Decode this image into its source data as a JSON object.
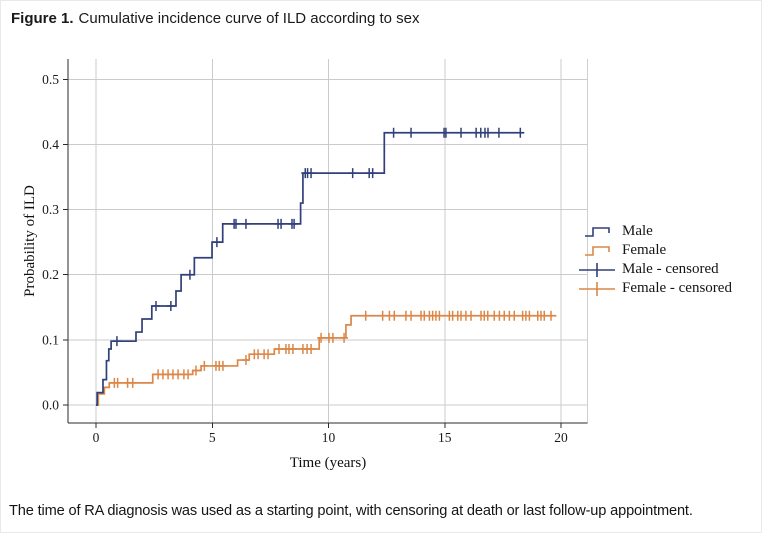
{
  "figure": {
    "label": "Figure 1.",
    "title": "Cumulative incidence curve of ILD according to sex",
    "caption": "The time of RA diagnosis was used as a starting point, with censoring at death or last follow-up appointment."
  },
  "chart_data": {
    "type": "line",
    "subtype": "cumulative-incidence-step-curve-with-censor-marks",
    "title": "",
    "xlabel": "Time (years)",
    "ylabel": "Probability of ILD",
    "xlim": [
      0,
      20
    ],
    "ylim": [
      0.0,
      0.5
    ],
    "x_ticks": [
      0,
      5,
      10,
      15,
      20
    ],
    "y_ticks": [
      "0.0",
      "0.1",
      "0.2",
      "0.3",
      "0.4",
      "0.5"
    ],
    "grid": true,
    "legend_position": "right",
    "legend": [
      {
        "label": "Male",
        "color": "#31407a",
        "glyph": "step-line"
      },
      {
        "label": "Female",
        "color": "#dc8747",
        "glyph": "step-line"
      },
      {
        "label": "Male - censored",
        "color": "#31407a",
        "glyph": "plus-line"
      },
      {
        "label": "Female - censored",
        "color": "#dc8747",
        "glyph": "plus-line"
      }
    ],
    "series": [
      {
        "name": "Female",
        "color": "#dc8747",
        "end_time": 19.8,
        "steps": [
          [
            0,
            0
          ],
          [
            0.1,
            0.017
          ],
          [
            0.36,
            0.027
          ],
          [
            0.57,
            0.034
          ],
          [
            2.44,
            0.047
          ],
          [
            4.16,
            0.053
          ],
          [
            4.52,
            0.06
          ],
          [
            6.09,
            0.069
          ],
          [
            6.59,
            0.078
          ],
          [
            7.67,
            0.086
          ],
          [
            9.6,
            0.103
          ],
          [
            10.75,
            0.123
          ],
          [
            10.97,
            0.137
          ]
        ],
        "censored": [
          0.79,
          0.93,
          1.36,
          1.58,
          2.67,
          2.88,
          3.1,
          3.31,
          3.53,
          3.78,
          3.96,
          4.3,
          4.66,
          5.16,
          5.3,
          5.46,
          6.45,
          6.81,
          6.97,
          7.23,
          7.4,
          7.87,
          8.17,
          8.3,
          8.47,
          8.9,
          9.08,
          9.25,
          9.68,
          10.02,
          10.19,
          10.67,
          11.6,
          12.33,
          12.62,
          12.83,
          13.33,
          13.55,
          13.98,
          14.12,
          14.34,
          14.48,
          14.62,
          14.77,
          15.2,
          15.34,
          15.56,
          15.7,
          15.91,
          16.13,
          16.56,
          16.7,
          16.85,
          17.13,
          17.35,
          17.56,
          17.78,
          17.99,
          18.35,
          18.49,
          18.64,
          19.0,
          19.14,
          19.28,
          19.57
        ]
      },
      {
        "name": "Male",
        "color": "#31407a",
        "end_time": 18.4,
        "steps": [
          [
            0,
            0
          ],
          [
            0.05,
            0.019
          ],
          [
            0.3,
            0.039
          ],
          [
            0.45,
            0.068
          ],
          [
            0.55,
            0.086
          ],
          [
            0.65,
            0.098
          ],
          [
            1.72,
            0.112
          ],
          [
            1.98,
            0.132
          ],
          [
            2.4,
            0.152
          ],
          [
            3.44,
            0.175
          ],
          [
            3.66,
            0.2
          ],
          [
            4.23,
            0.226
          ],
          [
            4.99,
            0.25
          ],
          [
            5.45,
            0.278
          ],
          [
            8.8,
            0.31
          ],
          [
            8.9,
            0.356
          ],
          [
            12.4,
            0.418
          ]
        ],
        "censored": [
          0.9,
          2.58,
          3.22,
          4.04,
          5.2,
          5.94,
          6.02,
          6.45,
          7.83,
          7.96,
          8.43,
          8.52,
          9.0,
          9.1,
          9.25,
          11.04,
          11.75,
          11.9,
          12.8,
          13.55,
          14.97,
          15.05,
          15.7,
          16.35,
          16.55,
          16.73,
          16.86,
          17.33,
          18.25
        ]
      }
    ]
  }
}
